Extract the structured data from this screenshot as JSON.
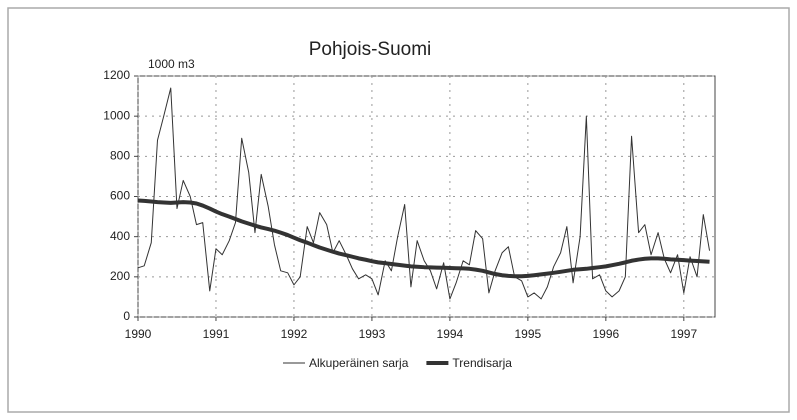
{
  "chart_data": {
    "type": "line",
    "title": "Pohjois-Suomi",
    "y_label": "1000 m3",
    "x": [
      1990.0,
      1990.08,
      1990.17,
      1990.25,
      1990.33,
      1990.42,
      1990.5,
      1990.58,
      1990.67,
      1990.75,
      1990.83,
      1990.92,
      1991.0,
      1991.08,
      1991.17,
      1991.25,
      1991.33,
      1991.42,
      1991.5,
      1991.58,
      1991.67,
      1991.75,
      1991.83,
      1991.92,
      1992.0,
      1992.08,
      1992.17,
      1992.25,
      1992.33,
      1992.42,
      1992.5,
      1992.58,
      1992.67,
      1992.75,
      1992.83,
      1992.92,
      1993.0,
      1993.08,
      1993.17,
      1993.25,
      1993.33,
      1993.42,
      1993.5,
      1993.58,
      1993.67,
      1993.75,
      1993.83,
      1993.92,
      1994.0,
      1994.08,
      1994.17,
      1994.25,
      1994.33,
      1994.42,
      1994.5,
      1994.58,
      1994.67,
      1994.75,
      1994.83,
      1994.92,
      1995.0,
      1995.08,
      1995.17,
      1995.25,
      1995.33,
      1995.42,
      1995.5,
      1995.58,
      1995.67,
      1995.75,
      1995.83,
      1995.92,
      1996.0,
      1996.08,
      1996.17,
      1996.25,
      1996.33,
      1996.42,
      1996.5,
      1996.58,
      1996.67,
      1996.75,
      1996.83,
      1996.92,
      1997.0,
      1997.08,
      1997.17,
      1997.25,
      1997.33
    ],
    "series": [
      {
        "name": "Alkuperäinen sarja",
        "color": "#333333",
        "width": 1,
        "values": [
          245,
          255,
          370,
          880,
          1000,
          1140,
          540,
          680,
          600,
          460,
          470,
          130,
          340,
          310,
          380,
          470,
          890,
          720,
          420,
          710,
          550,
          360,
          230,
          220,
          160,
          200,
          450,
          370,
          520,
          460,
          320,
          380,
          310,
          240,
          190,
          210,
          190,
          110,
          280,
          230,
          400,
          560,
          150,
          380,
          280,
          230,
          140,
          270,
          90,
          170,
          280,
          260,
          430,
          390,
          120,
          230,
          320,
          350,
          200,
          180,
          100,
          120,
          90,
          150,
          250,
          320,
          450,
          170,
          400,
          1000,
          190,
          210,
          130,
          100,
          130,
          200,
          900,
          420,
          460,
          310,
          420,
          290,
          220,
          310,
          120,
          300,
          200,
          510,
          330
        ]
      },
      {
        "name": "Trendisarja",
        "color": "#333333",
        "width": 4,
        "values": [
          580,
          578,
          575,
          572,
          570,
          568,
          570,
          572,
          570,
          565,
          555,
          540,
          525,
          512,
          500,
          488,
          476,
          465,
          455,
          446,
          438,
          430,
          420,
          408,
          395,
          382,
          370,
          358,
          346,
          335,
          325,
          316,
          308,
          300,
          292,
          285,
          278,
          272,
          268,
          264,
          260,
          256,
          252,
          250,
          248,
          247,
          246,
          245,
          244,
          243,
          242,
          240,
          236,
          230,
          222,
          214,
          208,
          205,
          203,
          203,
          205,
          208,
          212,
          216,
          220,
          225,
          230,
          235,
          238,
          240,
          244,
          248,
          252,
          258,
          265,
          272,
          280,
          286,
          290,
          292,
          292,
          290,
          287,
          285,
          283,
          281,
          279,
          277,
          275
        ]
      }
    ],
    "xlim": [
      1990,
      1997.4
    ],
    "xticks": [
      1990,
      1991,
      1992,
      1993,
      1994,
      1995,
      1996,
      1997
    ],
    "ylim": [
      0,
      1200
    ],
    "yticks": [
      0,
      200,
      400,
      600,
      800,
      1000,
      1200
    ],
    "grid": true
  }
}
